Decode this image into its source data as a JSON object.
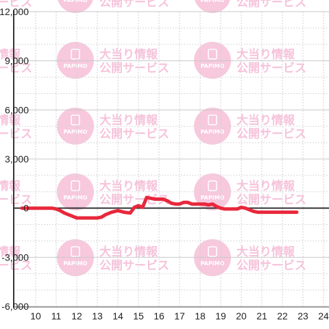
{
  "chart_data": {
    "type": "line",
    "title": "",
    "xlabel": "",
    "ylabel": "",
    "xlim": [
      9.33,
      24.33
    ],
    "ylim": [
      -6000,
      12000
    ],
    "x_ticks": [
      {
        "value": 10,
        "label": "10"
      },
      {
        "value": 11,
        "label": "11"
      },
      {
        "value": 12,
        "label": "12"
      },
      {
        "value": 13,
        "label": "13"
      },
      {
        "value": 14,
        "label": "14"
      },
      {
        "value": 15,
        "label": "15"
      },
      {
        "value": 16,
        "label": "16"
      },
      {
        "value": 17,
        "label": "17"
      },
      {
        "value": 18,
        "label": "18"
      },
      {
        "value": 19,
        "label": "19"
      },
      {
        "value": 20,
        "label": "20"
      },
      {
        "value": 21,
        "label": "21"
      },
      {
        "value": 22,
        "label": "22"
      },
      {
        "value": 23,
        "label": "23"
      },
      {
        "value": 24,
        "label": "24"
      }
    ],
    "y_ticks": [
      {
        "value": 12000,
        "label": "12,000"
      },
      {
        "value": 9000,
        "label": "9,000"
      },
      {
        "value": 6000,
        "label": "6,000"
      },
      {
        "value": 3000,
        "label": "3,000"
      },
      {
        "value": 0,
        "label": "0"
      },
      {
        "value": -3000,
        "label": "-3,000"
      },
      {
        "value": -6000,
        "label": "-6,000"
      }
    ],
    "grid": true,
    "series": [
      {
        "color": "#e8283c",
        "x": [
          9.33,
          10.2,
          10.8,
          11.0,
          11.2,
          11.4,
          11.6,
          11.8,
          12.0,
          12.5,
          13.0,
          13.2,
          13.4,
          13.7,
          14.0,
          14.3,
          14.6,
          14.8,
          15.0,
          15.2,
          15.4,
          15.6,
          15.8,
          16.0,
          16.2,
          16.4,
          16.6,
          16.8,
          17.0,
          17.2,
          17.4,
          17.6,
          17.8,
          18.0,
          18.2,
          18.4,
          18.6,
          18.8,
          19.0,
          19.2,
          19.4,
          19.6,
          19.8,
          20.0,
          20.2,
          20.4,
          20.6,
          20.8,
          21.0,
          21.5,
          22.0,
          22.5,
          22.7
        ],
        "y": [
          0,
          0,
          0,
          -50,
          -150,
          -300,
          -400,
          -500,
          -600,
          -600,
          -600,
          -550,
          -400,
          -250,
          -150,
          -250,
          -300,
          50,
          150,
          50,
          650,
          600,
          550,
          550,
          550,
          450,
          300,
          250,
          250,
          350,
          350,
          250,
          250,
          250,
          250,
          200,
          250,
          100,
          0,
          -50,
          -50,
          -50,
          -50,
          50,
          0,
          -100,
          -200,
          -250,
          -250,
          -250,
          -250,
          -250,
          -250
        ]
      }
    ],
    "watermark": {
      "lines": [
        "大当り情報",
        "公開サービス"
      ],
      "logo_text": "PAPIMO",
      "color": "#f5b5d2"
    }
  }
}
